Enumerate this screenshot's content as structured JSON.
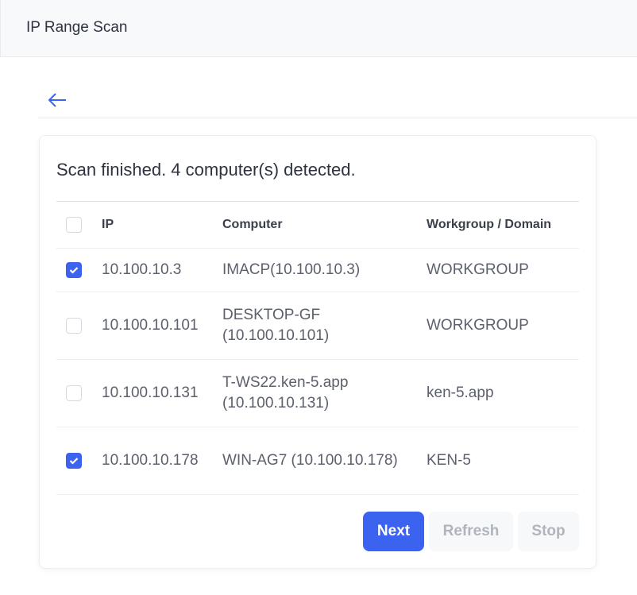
{
  "header": {
    "title": "IP Range Scan"
  },
  "status": "Scan finished. 4 computer(s) detected.",
  "table": {
    "columns": [
      "IP",
      "Computer",
      "Workgroup / Domain"
    ],
    "rows": [
      {
        "checked": true,
        "ip": "10.100.10.3",
        "computer": "IMACP(10.100.10.3)",
        "domain": "WORKGROUP"
      },
      {
        "checked": false,
        "ip": "10.100.10.101",
        "computer": "DESKTOP-GF (10.100.10.101)",
        "domain": "WORKGROUP"
      },
      {
        "checked": false,
        "ip": "10.100.10.131",
        "computer": "T-WS22.ken-5.app (10.100.10.131)",
        "domain": "ken-5.app"
      },
      {
        "checked": true,
        "ip": "10.100.10.178",
        "computer": "WIN-AG7 (10.100.10.178)",
        "domain": "KEN-5"
      }
    ]
  },
  "buttons": {
    "next": "Next",
    "refresh": "Refresh",
    "stop": "Stop"
  },
  "colors": {
    "accent": "#3b63f0"
  }
}
